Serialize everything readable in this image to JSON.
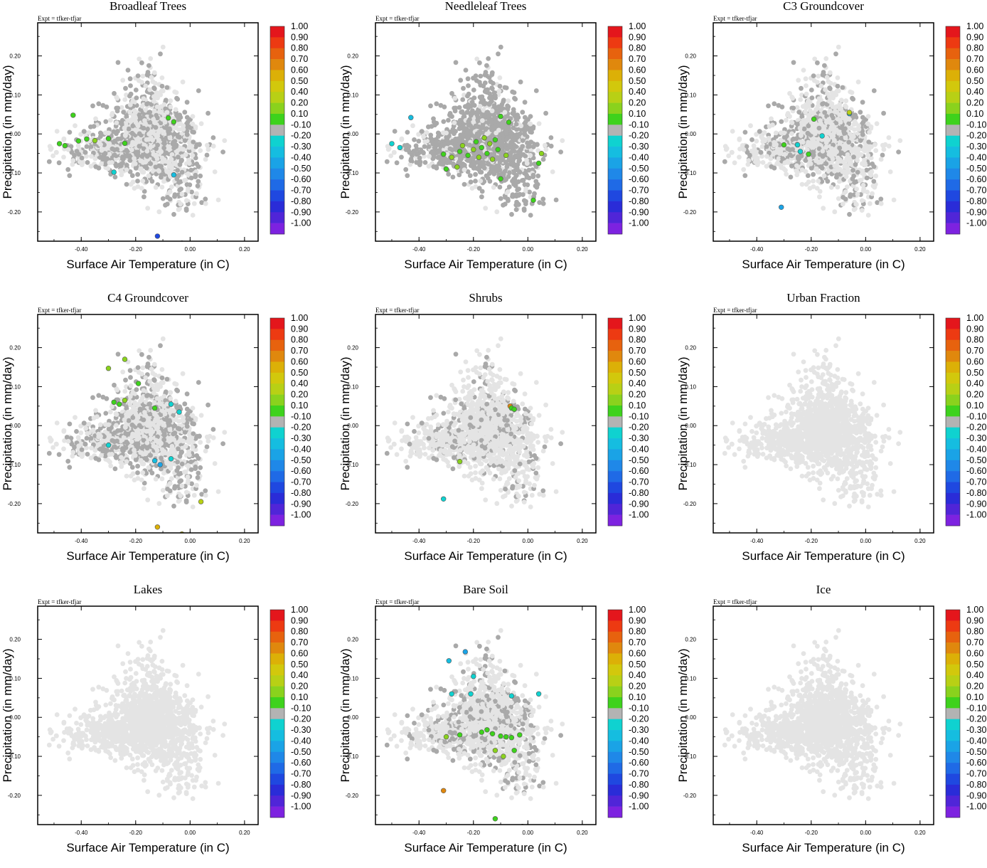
{
  "figure": {
    "expt_label": "Expt = tfker-tfjar",
    "xlabel": "Surface Air Temperature (in C)",
    "ylabel": "Precipitation (in mm/day)",
    "xlim": [
      -0.56,
      0.25
    ],
    "ylim": [
      -0.275,
      0.285
    ],
    "xticks": [
      -0.4,
      -0.2,
      0.0,
      0.2
    ],
    "xtick_labels": [
      "-0.40",
      "-0.20",
      "0.00",
      "0.20"
    ],
    "yticks": [
      -0.2,
      -0.1,
      0.0,
      0.1,
      0.2
    ],
    "ytick_labels": [
      "-0.20",
      "-0.10",
      "0.00",
      "0.10",
      "0.20"
    ],
    "background_point_color": "#e4e4e4",
    "neutral_point_color": "#a9a9a9",
    "colorbar": {
      "labels": [
        "1.00",
        "0.90",
        "0.80",
        "0.70",
        "0.60",
        "0.50",
        "0.40",
        "0.20",
        "0.10",
        "-0.10",
        "-0.20",
        "-0.30",
        "-0.40",
        "-0.50",
        "-0.60",
        "-0.70",
        "-0.80",
        "-0.90",
        "-1.00"
      ],
      "colors": [
        "#e4161c",
        "#ed3a12",
        "#e7620e",
        "#e0880d",
        "#dcb007",
        "#d2c80c",
        "#b8d015",
        "#8ad21d",
        "#3ed21c",
        "#b3b3b3",
        "#0fd2d0",
        "#15bde0",
        "#1aa3e6",
        "#1f88e8",
        "#1f6ae6",
        "#1f48e0",
        "#2a2cd8",
        "#5025d8",
        "#7d22e0"
      ]
    }
  },
  "chart_data": [
    {
      "type": "scatter",
      "title": "Broadleaf Trees",
      "grey_density": 0.5,
      "highlights": [
        {
          "x": -0.43,
          "y": 0.048,
          "c": "#3ed21c"
        },
        {
          "x": -0.48,
          "y": -0.025,
          "c": "#3ed21c"
        },
        {
          "x": -0.46,
          "y": -0.03,
          "c": "#3ed21c"
        },
        {
          "x": -0.41,
          "y": -0.018,
          "c": "#3ed21c"
        },
        {
          "x": -0.38,
          "y": -0.013,
          "c": "#3ed21c"
        },
        {
          "x": -0.35,
          "y": -0.017,
          "c": "#8ad21d"
        },
        {
          "x": -0.3,
          "y": -0.012,
          "c": "#3ed21c"
        },
        {
          "x": -0.24,
          "y": -0.024,
          "c": "#3ed21c"
        },
        {
          "x": -0.08,
          "y": 0.041,
          "c": "#3ed21c"
        },
        {
          "x": -0.06,
          "y": 0.031,
          "c": "#3ed21c"
        },
        {
          "x": -0.28,
          "y": -0.098,
          "c": "#0fd2d0"
        },
        {
          "x": -0.06,
          "y": -0.105,
          "c": "#15bde0"
        },
        {
          "x": -0.12,
          "y": -0.262,
          "c": "#1f48e0"
        },
        {
          "x": -0.03,
          "y": -0.28,
          "c": "#1f48e0"
        }
      ]
    },
    {
      "type": "scatter",
      "title": "Needleleaf Trees",
      "grey_density": 0.85,
      "highlights": [
        {
          "x": -0.43,
          "y": 0.042,
          "c": "#15bde0"
        },
        {
          "x": -0.5,
          "y": -0.025,
          "c": "#0fd2d0"
        },
        {
          "x": -0.47,
          "y": -0.035,
          "c": "#0fd2d0"
        },
        {
          "x": -0.31,
          "y": -0.052,
          "c": "#3ed21c"
        },
        {
          "x": -0.28,
          "y": -0.06,
          "c": "#8ad21d"
        },
        {
          "x": -0.25,
          "y": -0.045,
          "c": "#3ed21c"
        },
        {
          "x": -0.24,
          "y": -0.03,
          "c": "#8ad21d"
        },
        {
          "x": -0.22,
          "y": -0.055,
          "c": "#3ed21c"
        },
        {
          "x": -0.2,
          "y": -0.04,
          "c": "#8ad21d"
        },
        {
          "x": -0.19,
          "y": -0.02,
          "c": "#3ed21c"
        },
        {
          "x": -0.18,
          "y": -0.06,
          "c": "#8ad21d"
        },
        {
          "x": -0.17,
          "y": -0.035,
          "c": "#3ed21c"
        },
        {
          "x": -0.16,
          "y": -0.01,
          "c": "#8ad21d"
        },
        {
          "x": -0.15,
          "y": -0.05,
          "c": "#3ed21c"
        },
        {
          "x": -0.14,
          "y": -0.025,
          "c": "#8ad21d"
        },
        {
          "x": -0.13,
          "y": -0.065,
          "c": "#8ad21d"
        },
        {
          "x": -0.12,
          "y": -0.015,
          "c": "#3ed21c"
        },
        {
          "x": -0.11,
          "y": -0.04,
          "c": "#3ed21c"
        },
        {
          "x": -0.1,
          "y": 0.045,
          "c": "#3ed21c"
        },
        {
          "x": -0.08,
          "y": -0.055,
          "c": "#8ad21d"
        },
        {
          "x": -0.07,
          "y": 0.03,
          "c": "#3ed21c"
        },
        {
          "x": -0.3,
          "y": -0.09,
          "c": "#3ed21c"
        },
        {
          "x": -0.26,
          "y": -0.085,
          "c": "#8ad21d"
        },
        {
          "x": -0.1,
          "y": -0.115,
          "c": "#3ed21c"
        },
        {
          "x": 0.05,
          "y": -0.05,
          "c": "#8ad21d"
        },
        {
          "x": 0.04,
          "y": -0.075,
          "c": "#3ed21c"
        },
        {
          "x": 0.02,
          "y": -0.17,
          "c": "#3ed21c"
        }
      ]
    },
    {
      "type": "scatter",
      "title": "C3 Groundcover",
      "grey_density": 0.35,
      "highlights": [
        {
          "x": -0.19,
          "y": 0.038,
          "c": "#3ed21c"
        },
        {
          "x": -0.06,
          "y": 0.052,
          "c": "#15bde0"
        },
        {
          "x": -0.06,
          "y": 0.055,
          "c": "#b8d015"
        },
        {
          "x": -0.16,
          "y": -0.005,
          "c": "#0fd2d0"
        },
        {
          "x": -0.3,
          "y": -0.028,
          "c": "#3ed21c"
        },
        {
          "x": -0.25,
          "y": -0.028,
          "c": "#0fd2d0"
        },
        {
          "x": -0.24,
          "y": -0.045,
          "c": "#0fd2d0"
        },
        {
          "x": -0.21,
          "y": -0.052,
          "c": "#3ed21c"
        },
        {
          "x": -0.31,
          "y": -0.188,
          "c": "#1aa3e6"
        }
      ]
    },
    {
      "type": "scatter",
      "title": "C4 Groundcover",
      "grey_density": 0.45,
      "highlights": [
        {
          "x": -0.3,
          "y": 0.147,
          "c": "#8ad21d"
        },
        {
          "x": -0.24,
          "y": 0.17,
          "c": "#8ad21d"
        },
        {
          "x": -0.19,
          "y": 0.108,
          "c": "#3ed21c"
        },
        {
          "x": -0.28,
          "y": 0.06,
          "c": "#3ed21c"
        },
        {
          "x": -0.26,
          "y": 0.055,
          "c": "#3ed21c"
        },
        {
          "x": -0.24,
          "y": 0.065,
          "c": "#8ad21d"
        },
        {
          "x": -0.13,
          "y": 0.045,
          "c": "#3ed21c"
        },
        {
          "x": -0.07,
          "y": 0.055,
          "c": "#0fd2d0"
        },
        {
          "x": -0.04,
          "y": 0.035,
          "c": "#0fd2d0"
        },
        {
          "x": -0.3,
          "y": -0.05,
          "c": "#0fd2d0"
        },
        {
          "x": -0.13,
          "y": -0.09,
          "c": "#15bde0"
        },
        {
          "x": -0.11,
          "y": -0.1,
          "c": "#1aa3e6"
        },
        {
          "x": -0.07,
          "y": -0.085,
          "c": "#0fd2d0"
        },
        {
          "x": 0.04,
          "y": -0.195,
          "c": "#b8d015"
        },
        {
          "x": -0.12,
          "y": -0.26,
          "c": "#dcb007"
        },
        {
          "x": -0.03,
          "y": -0.278,
          "c": "#d2c80c"
        }
      ]
    },
    {
      "type": "scatter",
      "title": "Shrubs",
      "grey_density": 0.18,
      "highlights": [
        {
          "x": -0.065,
          "y": 0.05,
          "c": "#e0880d"
        },
        {
          "x": -0.06,
          "y": 0.045,
          "c": "#3ed21c"
        },
        {
          "x": -0.05,
          "y": 0.042,
          "c": "#3ed21c"
        },
        {
          "x": -0.25,
          "y": -0.092,
          "c": "#8ad21d"
        },
        {
          "x": -0.31,
          "y": -0.188,
          "c": "#0fd2d0"
        }
      ]
    },
    {
      "type": "scatter",
      "title": "Urban Fraction",
      "grey_density": 0.0,
      "highlights": []
    },
    {
      "type": "scatter",
      "title": "Lakes",
      "grey_density": 0.0,
      "highlights": []
    },
    {
      "type": "scatter",
      "title": "Bare Soil",
      "grey_density": 0.25,
      "highlights": [
        {
          "x": -0.29,
          "y": 0.145,
          "c": "#15bde0"
        },
        {
          "x": -0.23,
          "y": 0.168,
          "c": "#1aa3e6"
        },
        {
          "x": -0.2,
          "y": 0.105,
          "c": "#0fd2d0"
        },
        {
          "x": -0.28,
          "y": 0.06,
          "c": "#0fd2d0"
        },
        {
          "x": -0.21,
          "y": 0.06,
          "c": "#0fd2d0"
        },
        {
          "x": -0.06,
          "y": 0.055,
          "c": "#0fd2d0"
        },
        {
          "x": 0.04,
          "y": 0.06,
          "c": "#0fd2d0"
        },
        {
          "x": -0.3,
          "y": -0.05,
          "c": "#8ad21d"
        },
        {
          "x": -0.25,
          "y": -0.045,
          "c": "#3ed21c"
        },
        {
          "x": -0.17,
          "y": -0.038,
          "c": "#3ed21c"
        },
        {
          "x": -0.15,
          "y": -0.032,
          "c": "#3ed21c"
        },
        {
          "x": -0.13,
          "y": -0.042,
          "c": "#3ed21c"
        },
        {
          "x": -0.1,
          "y": -0.048,
          "c": "#3ed21c"
        },
        {
          "x": -0.08,
          "y": -0.05,
          "c": "#3ed21c"
        },
        {
          "x": -0.06,
          "y": -0.052,
          "c": "#3ed21c"
        },
        {
          "x": -0.03,
          "y": -0.045,
          "c": "#3ed21c"
        },
        {
          "x": -0.12,
          "y": -0.085,
          "c": "#8ad21d"
        },
        {
          "x": -0.09,
          "y": -0.1,
          "c": "#8ad21d"
        },
        {
          "x": -0.05,
          "y": -0.085,
          "c": "#3ed21c"
        },
        {
          "x": -0.31,
          "y": -0.188,
          "c": "#e0880d"
        },
        {
          "x": -0.12,
          "y": -0.26,
          "c": "#3ed21c"
        },
        {
          "x": -0.02,
          "y": -0.28,
          "c": "#3ed21c"
        }
      ]
    },
    {
      "type": "scatter",
      "title": "Ice",
      "grey_density": 0.0,
      "highlights": []
    }
  ]
}
